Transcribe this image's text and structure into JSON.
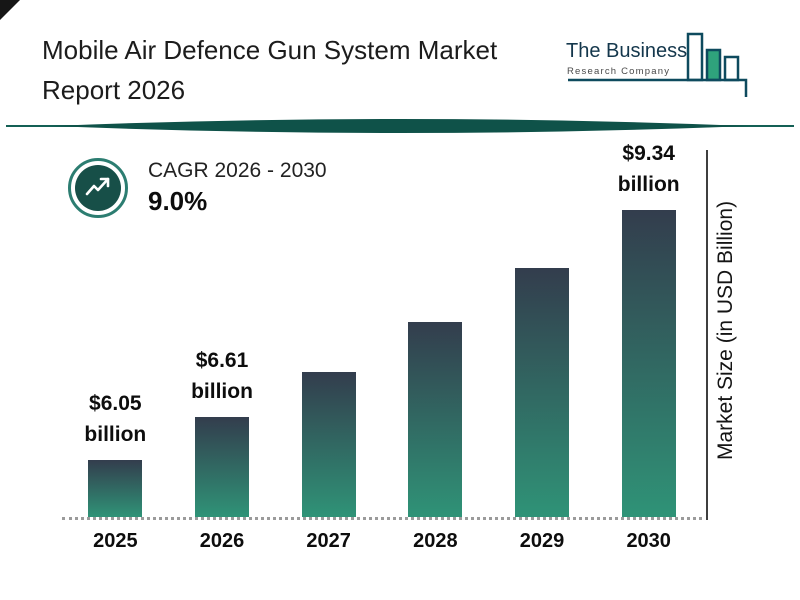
{
  "header": {
    "title_line1": "Mobile Air Defence Gun System Market",
    "title_line2": "Report 2026"
  },
  "logo": {
    "line1": "The Business",
    "line2": "Research Company"
  },
  "cagr": {
    "label": "CAGR 2026 - 2030",
    "value": "9.0%"
  },
  "chart_data": {
    "type": "bar",
    "title": "Mobile Air Defence Gun System Market Report 2026",
    "categories": [
      "2025",
      "2026",
      "2027",
      "2028",
      "2029",
      "2030"
    ],
    "values": [
      6.05,
      6.61,
      7.21,
      7.86,
      8.57,
      9.34
    ],
    "unit": "USD Billion",
    "xlabel": "",
    "ylabel": "Market Size (in USD Billion)",
    "ylim": [
      5.3,
      9.6
    ],
    "grid": false,
    "legend": "none",
    "bar_gradient_top": "#333d4d",
    "bar_gradient_bottom": "#2f9377",
    "annotations": [
      {
        "index": 0,
        "amount": "$6.05",
        "word": "billion"
      },
      {
        "index": 1,
        "amount": "$6.61",
        "word": "billion"
      },
      {
        "index": 5,
        "amount": "$9.34",
        "word": "billion"
      }
    ],
    "cagr_label": "CAGR 2026 - 2030",
    "cagr_value": "9.0%"
  },
  "colors": {
    "accent_teal": "#17635a",
    "divider_fill": "#0f5249",
    "logo_green": "#2fa27c",
    "logo_outline": "#0e4a5e",
    "title_text": "#1c1c1c"
  }
}
